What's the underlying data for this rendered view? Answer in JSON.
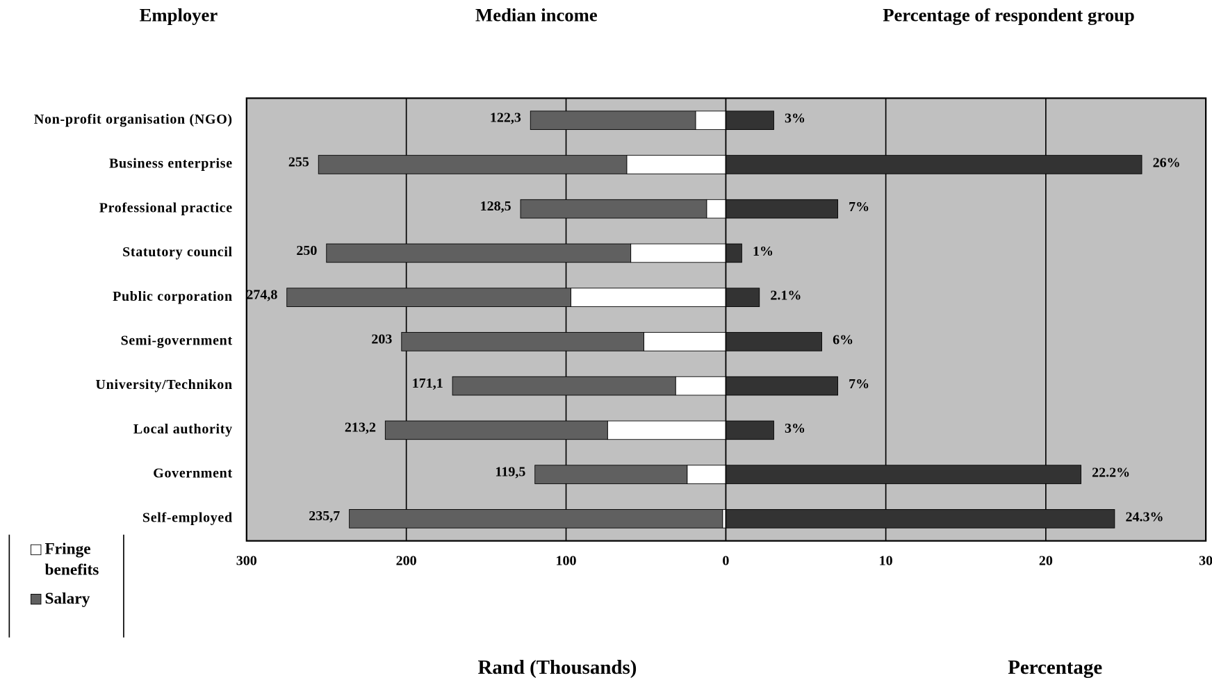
{
  "chart_data": {
    "type": "diverging-bar",
    "titles": [
      "Employer",
      "Median income",
      "Percentage of respondent group"
    ],
    "xlabel": "Rand (Thousands)",
    "x2label": "Percentage",
    "categories": [
      "Non-profit organisation (NGO)",
      "Business enterprise",
      "Professional practice",
      "Statutory council",
      "Public corporation",
      "Semi-government",
      "University/Technikon",
      "Local authority",
      "Government",
      "Self-employed"
    ],
    "series": [
      {
        "name": "Fringe benefits",
        "color": "#ffffff",
        "values": [
          18.9,
          62,
          12,
          59.5,
          97,
          51.3,
          31.4,
          74,
          24.2,
          2
        ]
      },
      {
        "name": "Salary",
        "color": "#606060",
        "values": [
          103.4,
          193,
          116.5,
          190.5,
          177.8,
          151.7,
          139.7,
          139.2,
          95.3,
          233.7
        ]
      }
    ],
    "totals": [
      122.3,
      255,
      128.5,
      250,
      274.8,
      203,
      171.1,
      213.2,
      119.5,
      235.7
    ],
    "total_labels": [
      "122,3",
      "255",
      "128,5",
      "250",
      "274,8",
      "203",
      "171,1",
      "213,2",
      "119,5",
      "235,7"
    ],
    "percent": {
      "color": "#333333",
      "values": [
        3,
        26,
        7,
        1,
        2.1,
        6,
        7,
        3,
        22.2,
        24.3
      ],
      "value_labels": [
        "3%",
        "26%",
        "7%",
        "1%",
        "2.1%",
        "6%",
        "7%",
        "3%",
        "22.2%",
        "24.3%"
      ]
    },
    "xlim": [
      0,
      300
    ],
    "xticks": [
      0,
      100,
      200,
      300
    ],
    "x2lim": [
      0,
      30
    ],
    "x2ticks": [
      10,
      20,
      30
    ],
    "grid": true,
    "background": "#c0c0c0",
    "legend": "bottom-left"
  }
}
